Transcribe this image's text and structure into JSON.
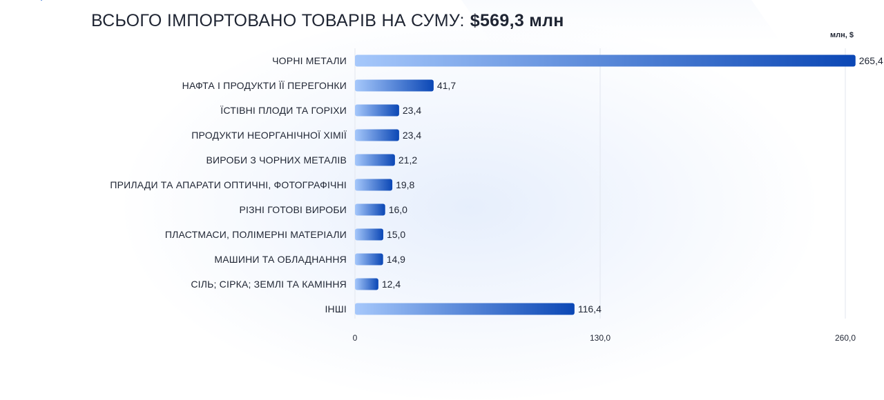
{
  "header": {
    "title": "ВСЬОГО ІМПОРТОВАНО ТОВАРІВ НА СУМУ:",
    "total": "$569,3 млн",
    "unit": "млн, $"
  },
  "colors": {
    "bar_start": "#a6c8fb",
    "bar_end": "#0b47b5",
    "grid": "#e2e6ee",
    "text": "#1f2533"
  },
  "chart_data": {
    "type": "bar",
    "orientation": "horizontal",
    "title": "ВСЬОГО ІМПОРТОВАНО ТОВАРІВ НА СУМУ: $569,3 млн",
    "xlabel": "млн, $",
    "ylabel": "",
    "xlim": [
      0,
      260
    ],
    "ticks": [
      0,
      130,
      260
    ],
    "tick_labels": [
      "0",
      "130,0",
      "260,0"
    ],
    "grid": true,
    "categories": [
      "ЧОРНІ МЕТАЛИ",
      "НАФТА І ПРОДУКТИ ЇЇ ПЕРЕГОНКИ",
      "ЇСТІВНІ ПЛОДИ ТА ГОРІХИ",
      "ПРОДУКТИ НЕОРГАНІЧНОЇ ХІМІЇ",
      "ВИРОБИ З ЧОРНИХ МЕТАЛІВ",
      "ПРИЛАДИ ТА АПАРАТИ ОПТИЧНІ, ФОТОГРАФІЧНІ",
      "РІЗНІ ГОТОВІ ВИРОБИ",
      "ПЛАСТМАСИ, ПОЛІМЕРНІ МАТЕРІАЛИ",
      "МАШИНИ ТА ОБЛАДНАННЯ",
      "СІЛЬ; СІРКА; ЗЕМЛІ ТА КАМІННЯ",
      "ІНШІ"
    ],
    "values": [
      265.4,
      41.7,
      23.4,
      23.4,
      21.2,
      19.8,
      16.0,
      15.0,
      14.9,
      12.4,
      116.4
    ],
    "value_labels": [
      "265,4",
      "41,7",
      "23,4",
      "23,4",
      "21,2",
      "19,8",
      "16,0",
      "15,0",
      "14,9",
      "12,4",
      "116,4"
    ]
  }
}
